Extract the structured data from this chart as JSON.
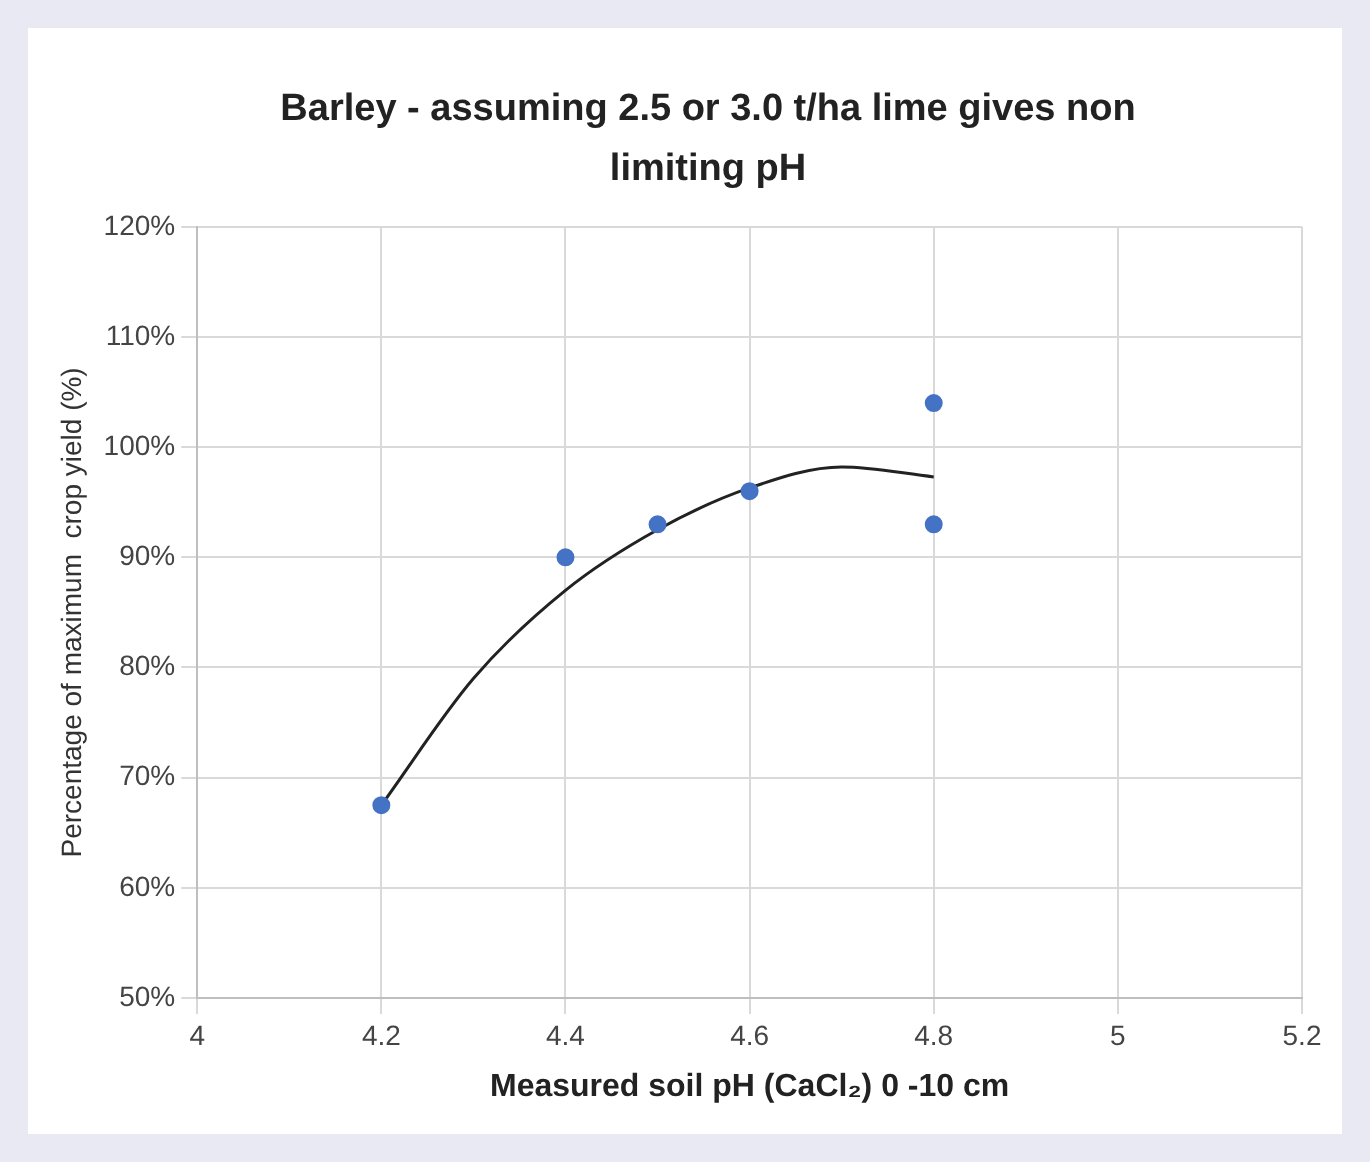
{
  "chart_data": {
    "type": "scatter",
    "title": "Barley - assuming 2.5 or 3.0 t/ha lime gives non limiting pH",
    "xlabel": "Measured soil pH (CaCl₂) 0 -10 cm",
    "ylabel": "Percentage of maximum  crop yield (%)",
    "series": [
      {
        "type": "scatter",
        "color": "#4472c4",
        "marker": "circle",
        "x": [
          4.2,
          4.4,
          4.5,
          4.6,
          4.8,
          4.8
        ],
        "values": [
          67.5,
          90,
          93,
          96,
          104,
          93
        ]
      },
      {
        "type": "line",
        "color": "#222222",
        "marker": "none",
        "x": [
          4.2,
          4.3,
          4.4,
          4.5,
          4.6,
          4.7,
          4.8
        ],
        "values": [
          67.5,
          79,
          87,
          92.5,
          96.3,
          98.2,
          97.3
        ]
      }
    ],
    "xlim": [
      4,
      5.2
    ],
    "xticks": [
      4,
      4.2,
      4.4,
      4.6,
      4.8,
      5,
      5.2
    ],
    "ylim": [
      50,
      120
    ],
    "yticks": [
      {
        "value": 50,
        "label": "50%"
      },
      {
        "value": 60,
        "label": "60%"
      },
      {
        "value": 70,
        "label": "70%"
      },
      {
        "value": 80,
        "label": "80%"
      },
      {
        "value": 90,
        "label": "90%"
      },
      {
        "value": 100,
        "label": "100%"
      },
      {
        "value": 110,
        "label": "110%"
      },
      {
        "value": 120,
        "label": "120%"
      }
    ],
    "grid": true,
    "legend": false
  }
}
